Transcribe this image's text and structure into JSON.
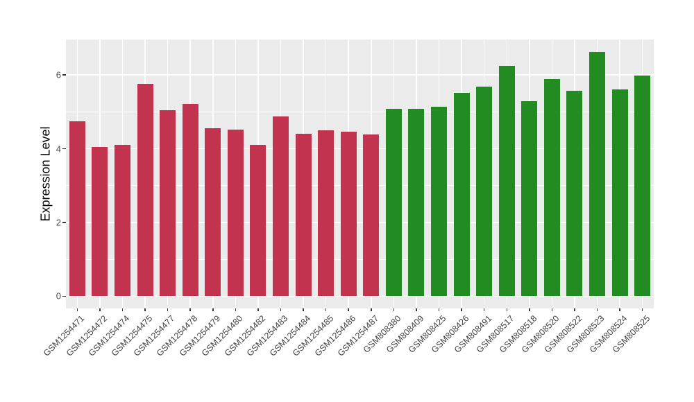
{
  "figure": {
    "background": "#FFFFFF"
  },
  "chart_data": {
    "type": "bar",
    "title": "",
    "xlabel": "",
    "ylabel": "Expression Level",
    "legend_position": "none",
    "grid": "on",
    "panel_background": "#EBEBEB",
    "grid_color": "#FFFFFF",
    "tick_label_color": "#4D4D4D",
    "x_tick_label_color": "#404040",
    "tick_mark_color": "#333333",
    "axis_title_color": "#000000",
    "x_tick_angle": -45,
    "ylim": [
      -0.33,
      6.96
    ],
    "yticks": [
      0,
      2,
      4,
      6
    ],
    "yticks_minor": [
      1,
      3,
      5
    ],
    "group_colors": {
      "red": "#C2334F",
      "green": "#228B22"
    },
    "categories": [
      "GSM1254471",
      "GSM1254472",
      "GSM1254474",
      "GSM1254475",
      "GSM1254477",
      "GSM1254478",
      "GSM1254479",
      "GSM1254480",
      "GSM1254482",
      "GSM1254483",
      "GSM1254484",
      "GSM1254485",
      "GSM1254486",
      "GSM1254487",
      "GSM808380",
      "GSM808409",
      "GSM808425",
      "GSM808426",
      "GSM808491",
      "GSM808517",
      "GSM808518",
      "GSM808520",
      "GSM808522",
      "GSM808523",
      "GSM808524",
      "GSM808525"
    ],
    "values": [
      4.75,
      4.05,
      4.1,
      5.75,
      5.04,
      5.21,
      4.55,
      4.51,
      4.11,
      4.87,
      4.4,
      4.49,
      4.46,
      4.39,
      5.09,
      5.09,
      5.14,
      5.51,
      5.68,
      6.24,
      5.28,
      5.89,
      5.57,
      6.63,
      5.6,
      5.99
    ],
    "groups": [
      "red",
      "red",
      "red",
      "red",
      "red",
      "red",
      "red",
      "red",
      "red",
      "red",
      "red",
      "red",
      "red",
      "red",
      "green",
      "green",
      "green",
      "green",
      "green",
      "green",
      "green",
      "green",
      "green",
      "green",
      "green",
      "green"
    ]
  }
}
